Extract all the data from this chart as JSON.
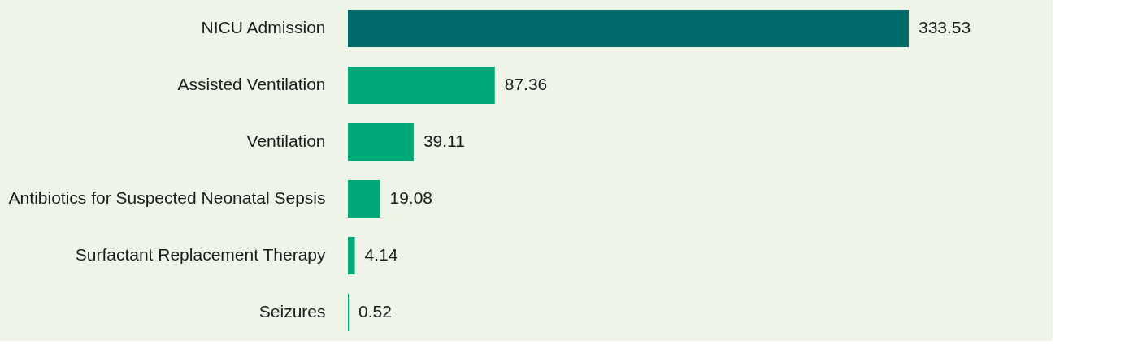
{
  "chart_data": {
    "type": "bar",
    "orientation": "horizontal",
    "categories": [
      "NICU Admission",
      "Assisted Ventilation",
      "Ventilation",
      "Antibiotics for Suspected Neonatal Sepsis",
      "Surfactant Replacement Therapy",
      "Seizures"
    ],
    "values": [
      333.53,
      87.36,
      39.11,
      19.08,
      4.14,
      0.52
    ],
    "colors": [
      "#006a6a",
      "#00a878",
      "#00a878",
      "#00a878",
      "#00a878",
      "#00a878"
    ],
    "data_labels": true
  }
}
